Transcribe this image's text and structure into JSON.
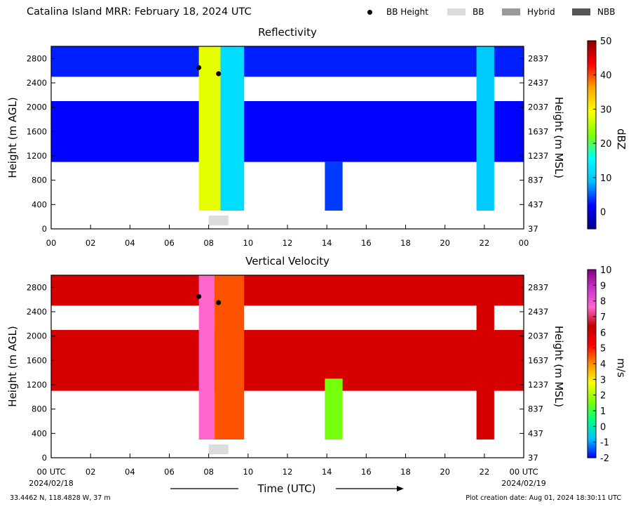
{
  "header": {
    "title": "Catalina Island MRR:  February 18, 2024 UTC",
    "legend": [
      {
        "label": "BB Height",
        "marker": "dot",
        "color": "#000000"
      },
      {
        "label": "BB",
        "marker": "box",
        "color": "#dcdcdc"
      },
      {
        "label": "Hybrid",
        "marker": "box",
        "color": "#999999"
      },
      {
        "label": "NBB",
        "marker": "box",
        "color": "#555555"
      }
    ]
  },
  "footer": {
    "coords": "33.4462 N, 118.4828 W, 37 m",
    "creation": "Plot creation date: Aug 01, 2024 18:30:11 UTC",
    "xlabel": "Time (UTC)",
    "start_date": "2024/02/18",
    "end_date": "2024/02/19"
  },
  "chart_data": [
    {
      "type": "heatmap",
      "title": "Reflectivity",
      "ylabel": "Height (m AGL)",
      "y2label": "Height (m MSL)",
      "colorbar_label": "dBZ",
      "x_ticks": [
        "00",
        "02",
        "04",
        "06",
        "08",
        "10",
        "12",
        "14",
        "16",
        "18",
        "20",
        "22",
        "00"
      ],
      "y_ticks": [
        0,
        400,
        800,
        1200,
        1600,
        2000,
        2400,
        2800
      ],
      "y2_ticks": [
        37,
        437,
        837,
        1237,
        1637,
        2037,
        2437,
        2837
      ],
      "xlim": [
        0,
        24
      ],
      "ylim": [
        0,
        3000
      ],
      "colorbar_ticks": [
        0,
        10,
        20,
        30,
        40,
        50
      ],
      "colorbar_range": [
        -5,
        50
      ],
      "colorbar_stops": [
        "#00008b",
        "#0000ff",
        "#00bfff",
        "#00ffff",
        "#7fff00",
        "#ffff00",
        "#ffa500",
        "#ff0000",
        "#8b0000"
      ],
      "regions": [
        {
          "x": [
            0,
            24
          ],
          "y": [
            2500,
            3000
          ],
          "value": 3
        },
        {
          "x": [
            0,
            24
          ],
          "y": [
            1100,
            2100
          ],
          "value": 2
        },
        {
          "x": [
            7.5,
            8.6
          ],
          "y": [
            300,
            3000
          ],
          "value": 28
        },
        {
          "x": [
            8.6,
            9.8
          ],
          "y": [
            300,
            3000
          ],
          "value": 12
        },
        {
          "x": [
            13.9,
            14.8
          ],
          "y": [
            300,
            1100
          ],
          "value": 4
        },
        {
          "x": [
            21.6,
            22.5
          ],
          "y": [
            300,
            3000
          ],
          "value": 10
        }
      ],
      "bb_height_points": [
        {
          "x": 7.5,
          "y": 2650
        },
        {
          "x": 8.5,
          "y": 2550
        }
      ],
      "bb_segments": [
        {
          "x": [
            8.0,
            9.0
          ],
          "class": "BB"
        }
      ]
    },
    {
      "type": "heatmap",
      "title": "Vertical Velocity",
      "ylabel": "Height (m AGL)",
      "y2label": "Height (m MSL)",
      "colorbar_label": "m/s",
      "x_ticks": [
        "00 UTC",
        "02",
        "04",
        "06",
        "08",
        "10",
        "12",
        "14",
        "16",
        "18",
        "20",
        "22",
        "00 UTC"
      ],
      "y_ticks": [
        0,
        400,
        800,
        1200,
        1600,
        2000,
        2400,
        2800
      ],
      "y2_ticks": [
        37,
        437,
        837,
        1237,
        1637,
        2037,
        2437,
        2837
      ],
      "xlim": [
        0,
        24
      ],
      "ylim": [
        0,
        3000
      ],
      "colorbar_ticks": [
        -2,
        -1,
        0,
        1,
        2,
        3,
        4,
        5,
        6,
        7,
        8,
        9,
        10
      ],
      "colorbar_range": [
        -2,
        10
      ],
      "colorbar_stops": [
        "#0000ff",
        "#00bfff",
        "#00ff7f",
        "#7fff00",
        "#ffff00",
        "#ff8c00",
        "#ff0000",
        "#c00000",
        "#ff66cc",
        "#cc33cc",
        "#800080"
      ],
      "regions": [
        {
          "x": [
            0,
            24
          ],
          "y": [
            2500,
            3000
          ],
          "value": 6
        },
        {
          "x": [
            0,
            24
          ],
          "y": [
            1100,
            2100
          ],
          "value": 6
        },
        {
          "x": [
            7.5,
            8.3
          ],
          "y": [
            300,
            3000
          ],
          "value": 7.6
        },
        {
          "x": [
            8.3,
            9.8
          ],
          "y": [
            300,
            3000
          ],
          "value": 4.5
        },
        {
          "x": [
            13.9,
            14.8
          ],
          "y": [
            300,
            1300
          ],
          "value": 1.5
        },
        {
          "x": [
            21.6,
            22.5
          ],
          "y": [
            300,
            3000
          ],
          "value": 6
        }
      ],
      "bb_height_points": [
        {
          "x": 7.5,
          "y": 2650
        },
        {
          "x": 8.5,
          "y": 2550
        }
      ],
      "bb_segments": [
        {
          "x": [
            8.0,
            9.0
          ],
          "class": "BB"
        }
      ]
    }
  ]
}
